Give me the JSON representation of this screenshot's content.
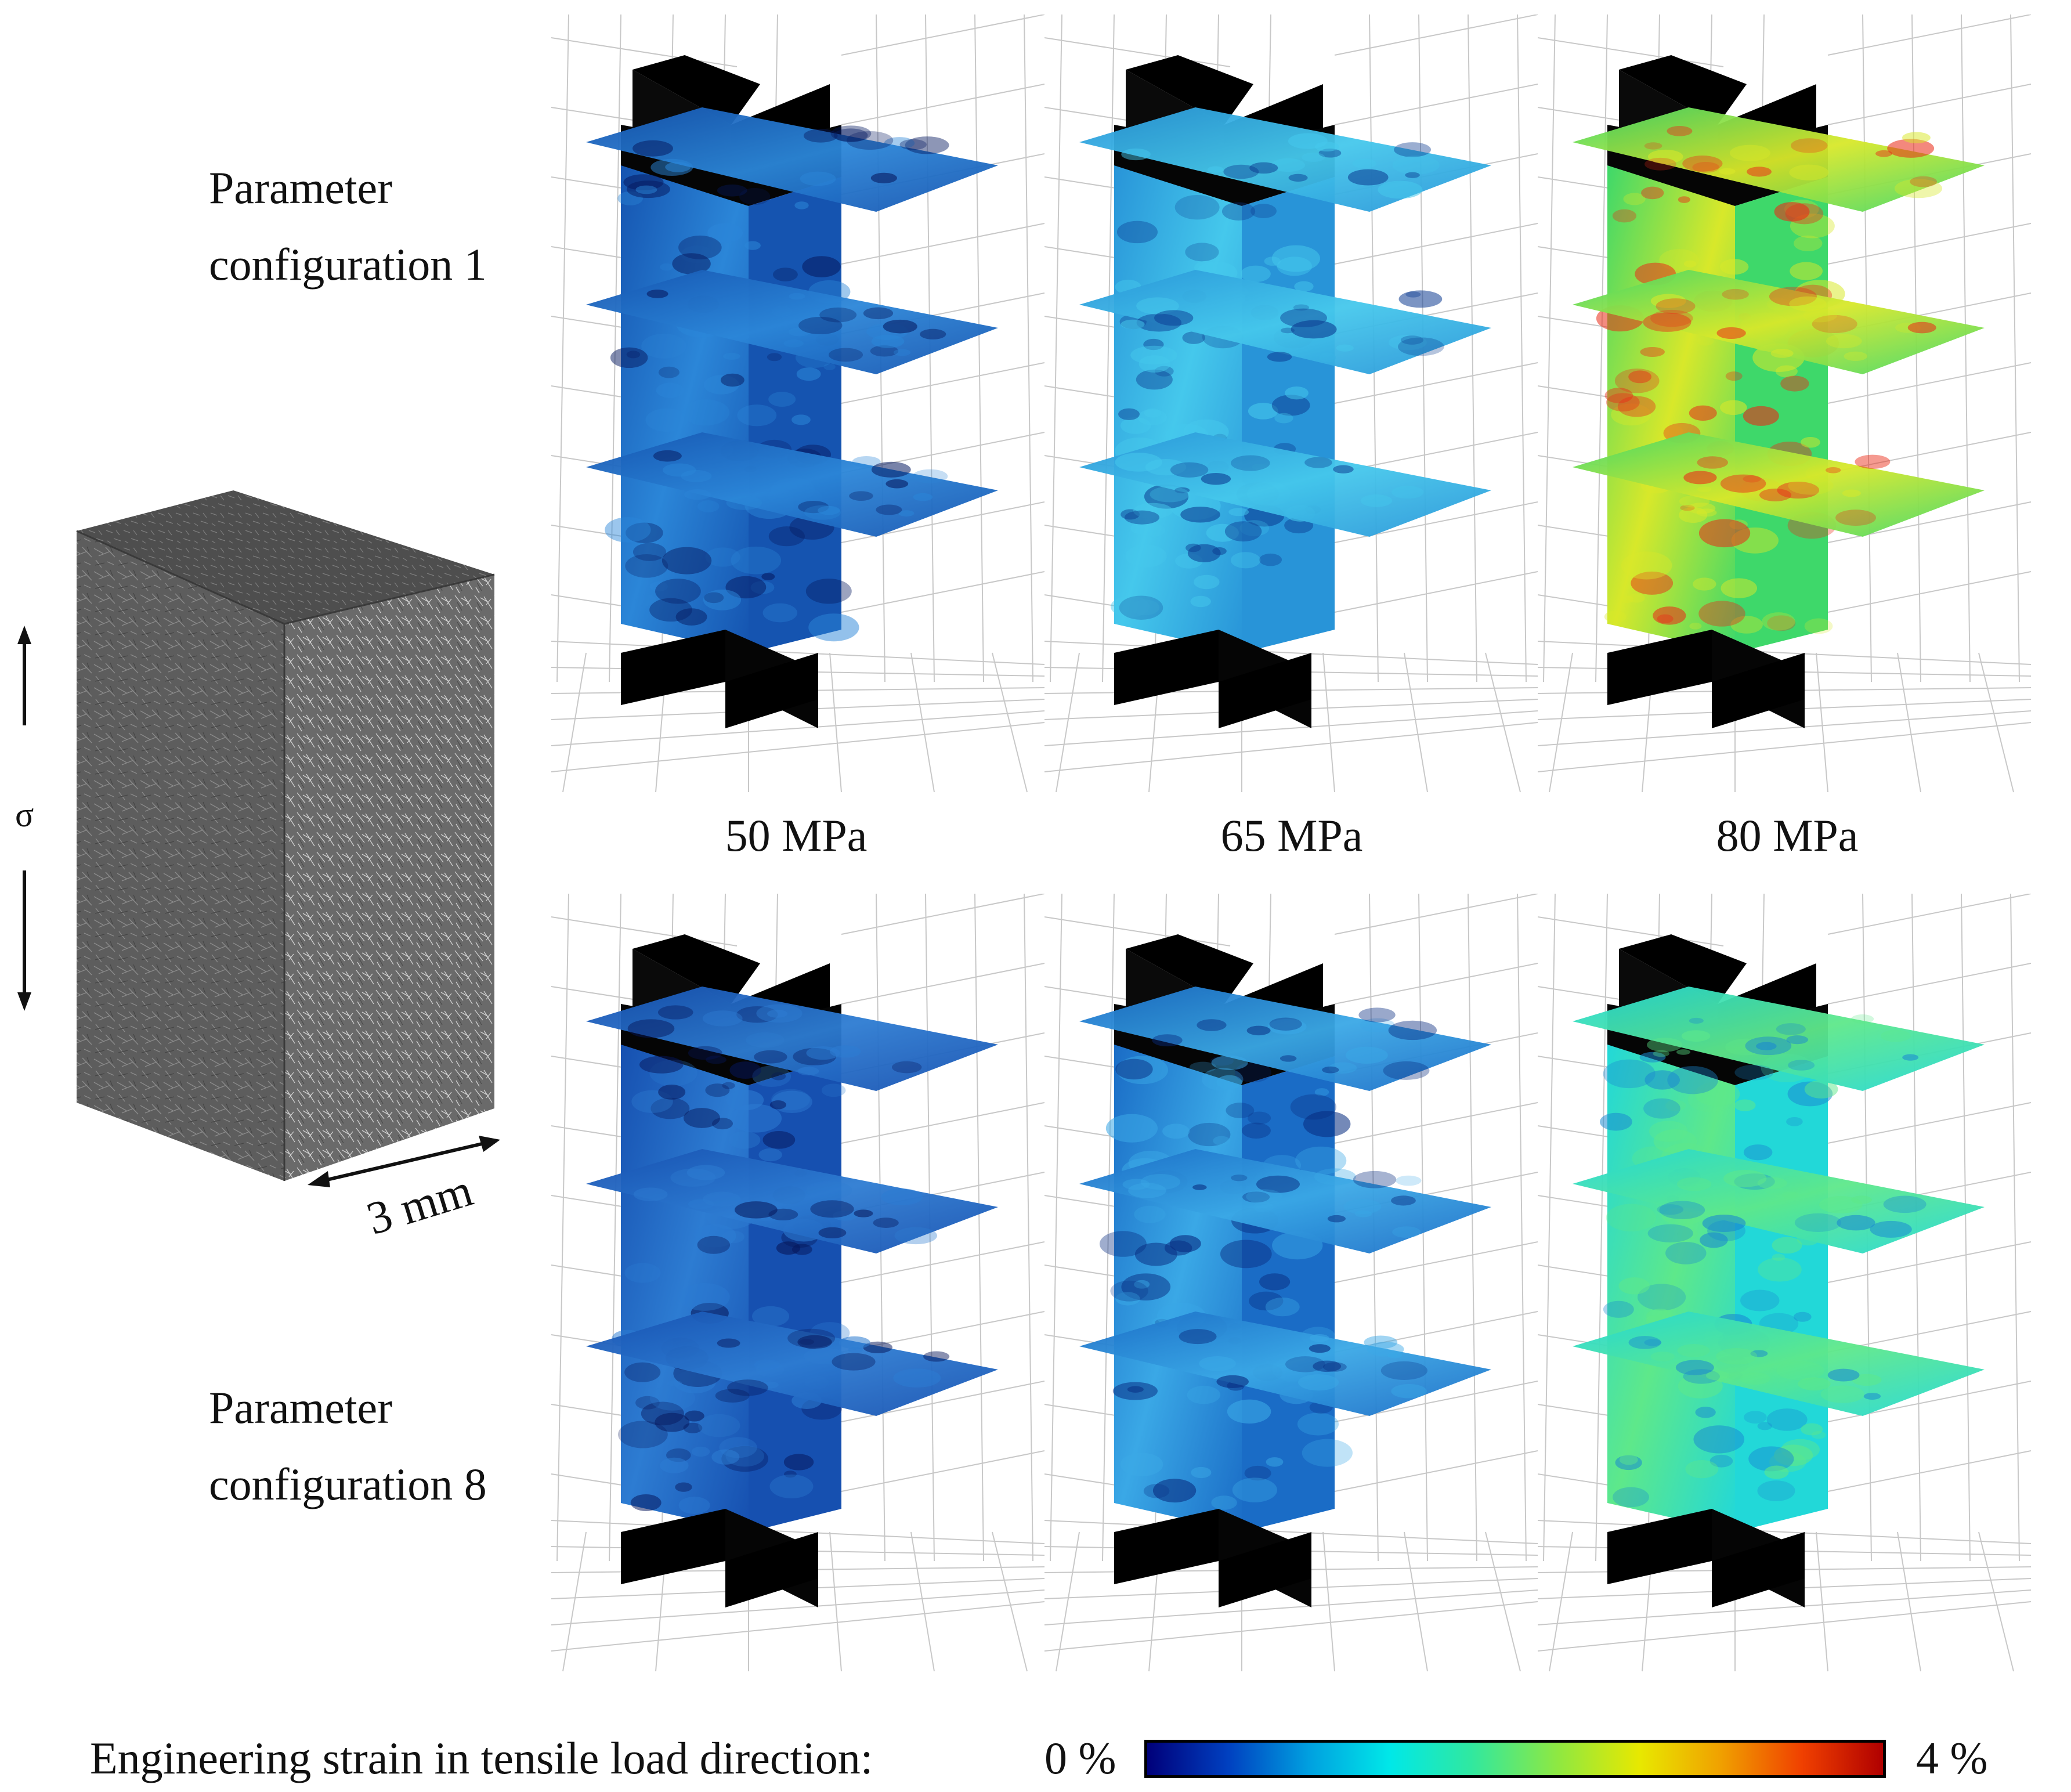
{
  "figure": {
    "rows": [
      {
        "label_line1": "Parameter",
        "label_line2": "configuration 1"
      },
      {
        "label_line1": "Parameter",
        "label_line2": "configuration 8"
      }
    ],
    "columns": [
      "50 MPa",
      "65 MPa",
      "80 MPa"
    ],
    "specimen": {
      "load_symbol": "σ",
      "scale_label": "3 mm"
    },
    "colorbar": {
      "title": "Engineering strain in tensile load direction:",
      "min_label": "0 %",
      "max_label": "4 %",
      "colors": [
        "#00007a",
        "#0040c0",
        "#00a0e0",
        "#00e8e8",
        "#30e8a0",
        "#90e840",
        "#e8e800",
        "#f0a000",
        "#f04000",
        "#b00000"
      ]
    },
    "panel_colors": {
      "r0c0": {
        "base": "#1554b0",
        "light": "#2b86d8",
        "dark": "#061a60"
      },
      "r0c1": {
        "base": "#2894d8",
        "light": "#45c8ec",
        "dark": "#0b3a90"
      },
      "r0c2": {
        "base": "#3ed86a",
        "light": "#d8e82a",
        "dark": "#ea2b18"
      },
      "r1c0": {
        "base": "#1650b0",
        "light": "#2d7cd2",
        "dark": "#06165a"
      },
      "r1c1": {
        "base": "#1a6cc6",
        "light": "#3aa8e6",
        "dark": "#082c80"
      },
      "r1c2": {
        "base": "#22d8d8",
        "light": "#5ee88a",
        "dark": "#1a88d0"
      }
    }
  }
}
